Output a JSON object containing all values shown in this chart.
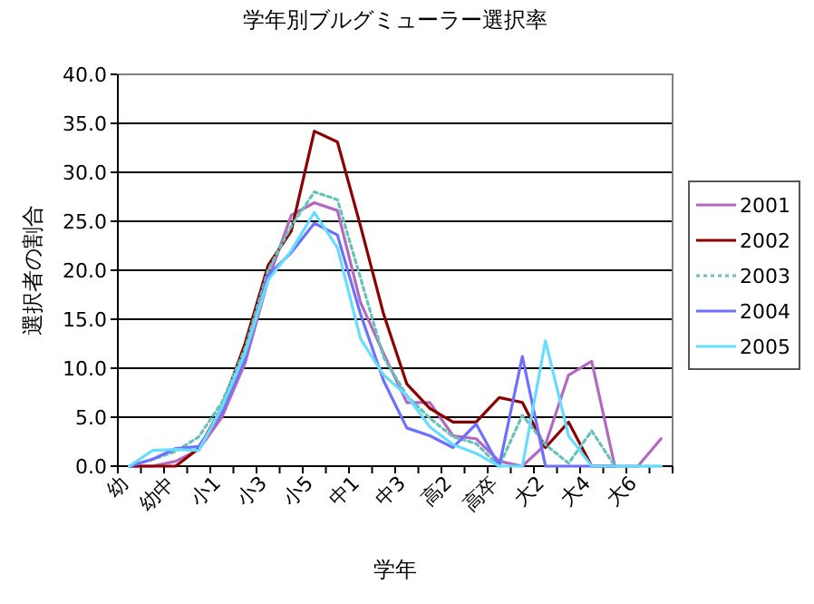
{
  "chart_data": {
    "type": "line",
    "title": "学年別ブルグミューラー選択率",
    "xlabel": "学年",
    "ylabel": "選択者の割合",
    "categories": [
      "幼",
      null,
      "幼中",
      null,
      "小1",
      null,
      "小3",
      null,
      "小5",
      null,
      "中1",
      null,
      "中3",
      null,
      "高2",
      null,
      "高卒",
      null,
      "大2",
      null,
      "大4",
      null,
      "大6",
      null
    ],
    "series": [
      {
        "name": "2001",
        "color": "#b469c0",
        "values": [
          0,
          0,
          0.5,
          1.7,
          5,
          10.5,
          19,
          25.6,
          26.9,
          26.1,
          16.7,
          11.5,
          6.5,
          6.5,
          3.1,
          2.8,
          0.5,
          0,
          2.2,
          9.3,
          10.7,
          0,
          0,
          2.8
        ]
      },
      {
        "name": "2002",
        "color": "#8b0000",
        "values": [
          0,
          0,
          0,
          1.8,
          6,
          12.5,
          20.5,
          24,
          34.2,
          33.1,
          24.5,
          15.5,
          8.4,
          5.9,
          4.5,
          4.5,
          7,
          6.5,
          1.9,
          4.5,
          0,
          0,
          null,
          null
        ]
      },
      {
        "name": "2003",
        "color": "#66c2b8",
        "line_style": "dotted",
        "values": [
          0,
          0.7,
          1.5,
          3,
          6.5,
          12,
          20,
          24.5,
          28,
          27.2,
          19.2,
          11.1,
          7.2,
          4.9,
          3,
          2.3,
          0,
          5.2,
          2.2,
          0.3,
          3.6,
          0,
          0,
          0
        ]
      },
      {
        "name": "2004",
        "color": "#6f6fff",
        "values": [
          0,
          0.7,
          1.8,
          2,
          5.5,
          11,
          19.5,
          21.8,
          24.8,
          23.6,
          15.5,
          8.7,
          3.9,
          3.1,
          1.9,
          4.3,
          0,
          11.2,
          0,
          0,
          0,
          0,
          null,
          null
        ]
      },
      {
        "name": "2005",
        "color": "#66ddff",
        "values": [
          0,
          1.6,
          1.7,
          1.6,
          6,
          11.5,
          19,
          22,
          25.9,
          22.3,
          13,
          9.3,
          7.2,
          4,
          2.2,
          1.3,
          0,
          0,
          12.8,
          3.1,
          0,
          0,
          0,
          0
        ]
      }
    ],
    "ylim": [
      0,
      40
    ],
    "yticks": [
      {
        "value": 0,
        "label": "0.0"
      },
      {
        "value": 5,
        "label": "5.0"
      },
      {
        "value": 10,
        "label": "10.0"
      },
      {
        "value": 15,
        "label": "15.0"
      },
      {
        "value": 20,
        "label": "20.0"
      },
      {
        "value": 25,
        "label": "25.0"
      },
      {
        "value": 30,
        "label": "30.0"
      },
      {
        "value": 35,
        "label": "35.0"
      },
      {
        "value": 40,
        "label": "40.0"
      }
    ],
    "grid": "y",
    "legend": "right",
    "marker": "none"
  }
}
